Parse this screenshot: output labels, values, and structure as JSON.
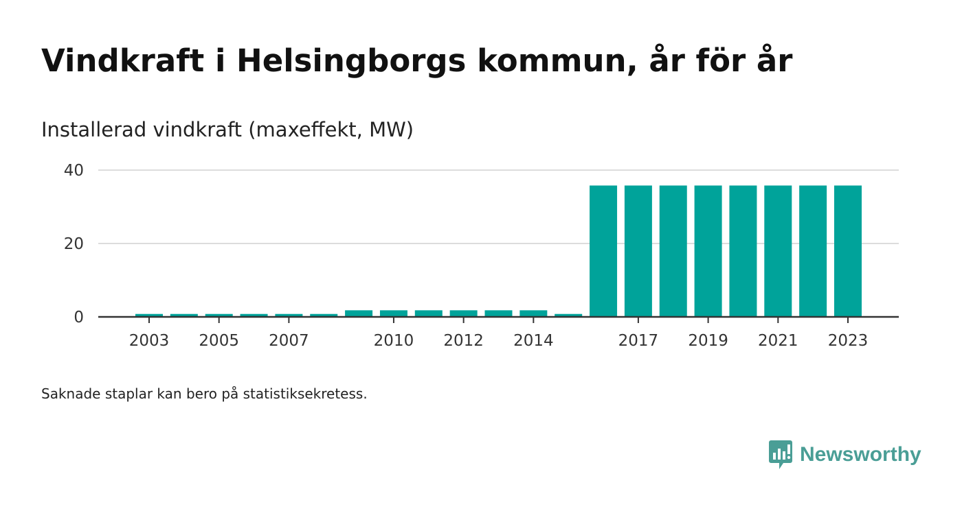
{
  "title": "Vindkraft i Helsingborgs kommun, år för år",
  "subtitle": "Installerad vindkraft (maxeffekt, MW)",
  "footnote": "Saknade staplar kan bero på statistiksekretess.",
  "brand": {
    "name": "Newsworthy",
    "icon": "newsworthy-logo-icon",
    "color": "#4a9e96"
  },
  "chart_data": {
    "type": "bar",
    "title": "Vindkraft i Helsingborgs kommun, år för år",
    "ylabel": "Installerad vindkraft (maxeffekt, MW)",
    "xlabel": "",
    "categories": [
      "2003",
      "2004",
      "2005",
      "2006",
      "2007",
      "2008",
      "2009",
      "2010",
      "2011",
      "2012",
      "2013",
      "2014",
      "2015",
      "2016",
      "2017",
      "2018",
      "2019",
      "2020",
      "2021",
      "2022",
      "2023"
    ],
    "values": [
      0.8,
      0.8,
      0.8,
      0.8,
      0.8,
      0.8,
      1.8,
      1.8,
      1.8,
      1.8,
      1.8,
      1.8,
      0.8,
      35.8,
      35.8,
      35.8,
      35.8,
      35.8,
      35.8,
      35.8,
      35.8
    ],
    "x_tick_labels": [
      "2003",
      "2005",
      "2007",
      "2010",
      "2012",
      "2014",
      "2017",
      "2019",
      "2021",
      "2023"
    ],
    "y_ticks": [
      0,
      20,
      40
    ],
    "ylim": [
      0,
      40
    ],
    "grid": true,
    "bar_color": "#00a39a",
    "legend": "none"
  }
}
